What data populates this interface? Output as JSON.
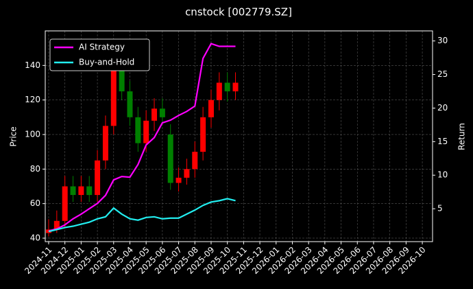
{
  "chart_data": {
    "type": "candlestick",
    "title": "cnstock [002779.SZ]",
    "ylabel": "Price",
    "y2label": "Return",
    "x": [
      0,
      0.5,
      1,
      1.5,
      2,
      2.5,
      3,
      3.5,
      4,
      4.5,
      5,
      5.5,
      6,
      6.5,
      7,
      7.5,
      8,
      8.5,
      9,
      9.5,
      10,
      10.5,
      11,
      11.5
    ],
    "open": [
      43,
      45,
      50,
      70,
      65,
      70,
      65,
      85,
      105,
      138,
      125,
      110,
      95,
      108,
      115,
      100,
      72,
      75,
      80,
      90,
      110,
      120,
      130,
      125
    ],
    "high": [
      51,
      56,
      76,
      76,
      76,
      76,
      91,
      111,
      144,
      144,
      131,
      116,
      114,
      121,
      121,
      106,
      81,
      86,
      96,
      116,
      126,
      136,
      136,
      136
    ],
    "low": [
      41,
      43,
      46,
      61,
      61,
      61,
      61,
      80,
      100,
      120,
      105,
      90,
      90,
      102,
      106,
      68,
      67,
      71,
      75,
      85,
      104,
      114,
      119,
      120
    ],
    "close": [
      45,
      50,
      70,
      65,
      70,
      65,
      85,
      105,
      138,
      125,
      110,
      95,
      108,
      115,
      110,
      72,
      75,
      80,
      90,
      110,
      120,
      130,
      125,
      130
    ],
    "up_color": "#ff0000",
    "down_color": "#008000",
    "series": [
      {
        "name": "AI Strategy",
        "color": "#ff00ff",
        "axis": "y2",
        "values": [
          1.7,
          2.0,
          2.6,
          3.5,
          4.2,
          5.0,
          5.8,
          7.0,
          9.3,
          9.8,
          9.7,
          11.6,
          14.5,
          15.6,
          17.8,
          18.2,
          18.9,
          19.5,
          20.3,
          27.4,
          29.6,
          29.2,
          29.2,
          29.2
        ]
      },
      {
        "name": "Buy-and-Hold",
        "color": "#22eef0",
        "axis": "y2",
        "values": [
          1.6,
          1.9,
          2.2,
          2.4,
          2.7,
          3.0,
          3.5,
          3.8,
          5.1,
          4.2,
          3.5,
          3.3,
          3.7,
          3.8,
          3.5,
          3.6,
          3.6,
          4.2,
          4.8,
          5.5,
          6.0,
          6.2,
          6.5,
          6.2
        ]
      }
    ],
    "xlim": [
      -0.21,
      23.63
    ],
    "xticks": [
      {
        "value": 0,
        "label": "2024-11"
      },
      {
        "value": 1,
        "label": "2024-12"
      },
      {
        "value": 2,
        "label": "2025-01"
      },
      {
        "value": 3,
        "label": "2025-02"
      },
      {
        "value": 4,
        "label": "2025-03"
      },
      {
        "value": 5,
        "label": "2025-04"
      },
      {
        "value": 6,
        "label": "2025-05"
      },
      {
        "value": 7,
        "label": "2025-06"
      },
      {
        "value": 8,
        "label": "2025-07"
      },
      {
        "value": 9,
        "label": "2025-08"
      },
      {
        "value": 10,
        "label": "2025-09"
      },
      {
        "value": 11,
        "label": "2025-10"
      },
      {
        "value": 12,
        "label": "2025-11"
      },
      {
        "value": 13,
        "label": "2025-12"
      },
      {
        "value": 14,
        "label": "2026-01"
      },
      {
        "value": 15,
        "label": "2026-02"
      },
      {
        "value": 16,
        "label": "2026-03"
      },
      {
        "value": 17,
        "label": "2026-04"
      },
      {
        "value": 18,
        "label": "2026-05"
      },
      {
        "value": 19,
        "label": "2026-06"
      },
      {
        "value": 20,
        "label": "2026-07"
      },
      {
        "value": 21,
        "label": "2026-08"
      },
      {
        "value": 22,
        "label": "2026-09"
      },
      {
        "value": 23,
        "label": "2026-10"
      }
    ],
    "ylim": [
      38,
      160
    ],
    "yticks": [
      40,
      60,
      80,
      100,
      120,
      140
    ],
    "y2lim": [
      0.1,
      31.5
    ],
    "y2ticks": [
      5,
      10,
      15,
      20,
      25,
      30
    ],
    "grid": true,
    "legend": "upper left"
  }
}
